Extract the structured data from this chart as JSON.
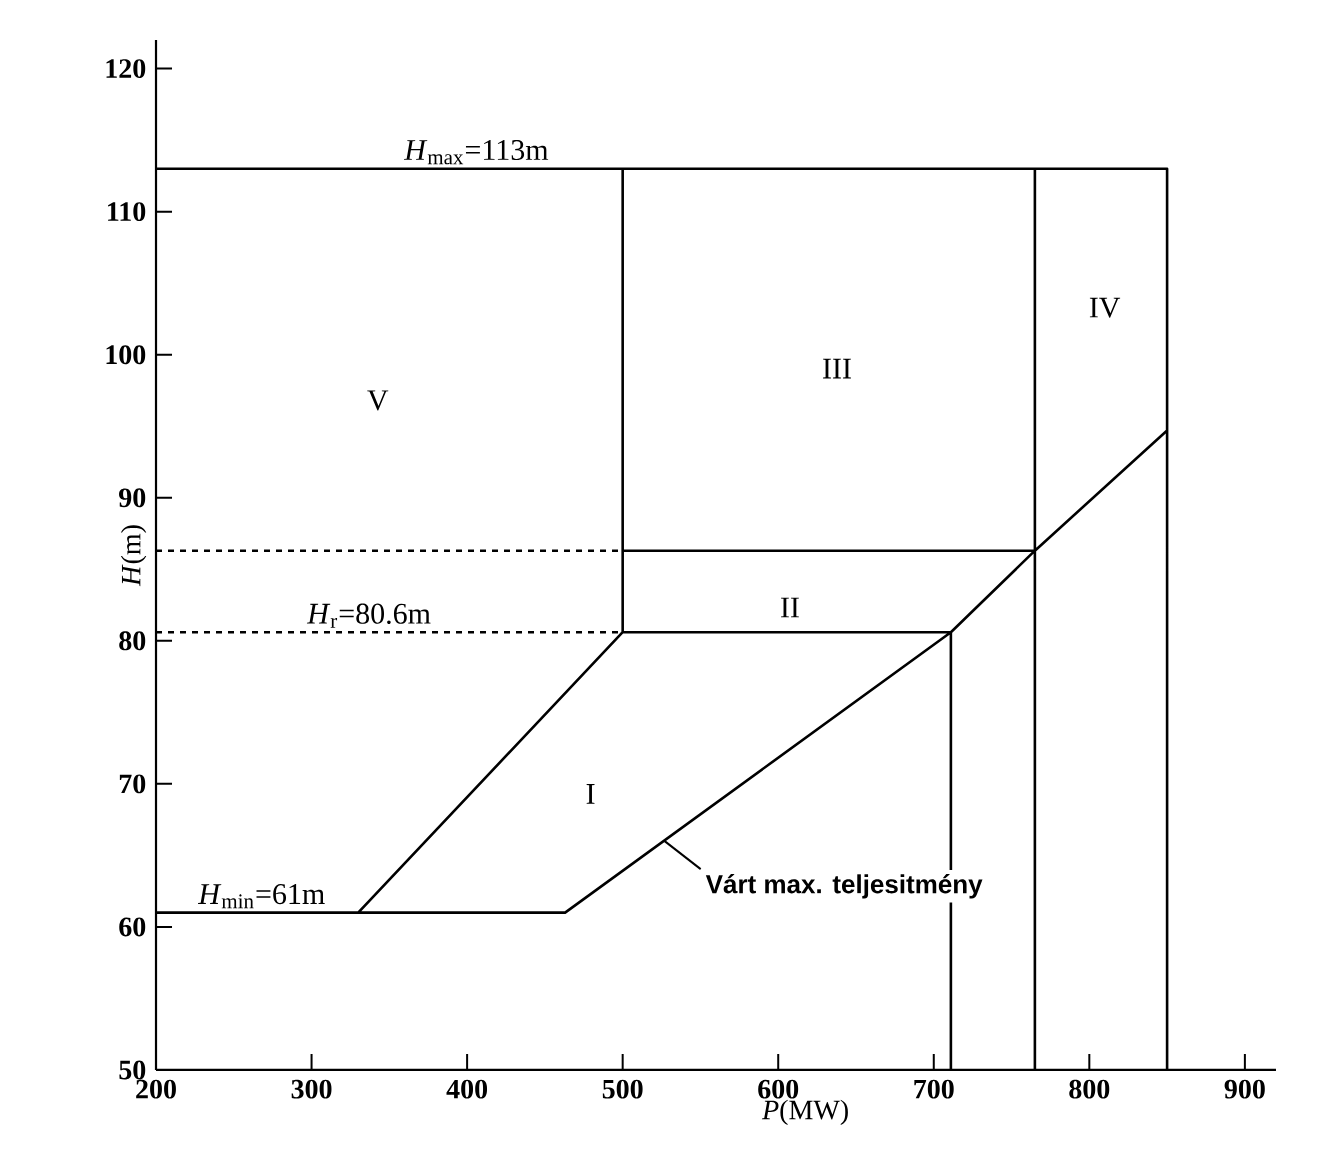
{
  "chart_data": {
    "type": "line",
    "xlabel": "*P*(MW)",
    "ylabel": "*H*(m)",
    "xlim": [
      200,
      920
    ],
    "ylim": [
      50,
      122
    ],
    "xticks": [
      200,
      300,
      400,
      500,
      600,
      700,
      800,
      900
    ],
    "yticks": [
      50,
      60,
      70,
      80,
      90,
      100,
      110,
      120
    ],
    "series": [
      {
        "color": "#000000",
        "x": [
          200,
          850,
          850,
          null,
          200,
          463,
          711,
          765,
          850,
          null,
          330,
          500,
          500,
          null,
          500,
          711,
          711,
          null,
          500,
          765,
          null,
          765,
          765
        ],
        "values": [
          113,
          113,
          50,
          null,
          61,
          61,
          80.6,
          86.3,
          94.7,
          null,
          61,
          80.6,
          113,
          null,
          80.6,
          80.6,
          50,
          null,
          86.3,
          86.3,
          null,
          113,
          50
        ]
      },
      {
        "color": "#000000",
        "x": [
          200,
          500
        ],
        "values": [
          86.3,
          86.3
        ],
        "line_style": "dashed"
      },
      {
        "color": "#000000",
        "x": [
          200,
          500
        ],
        "values": [
          80.6,
          80.6
        ],
        "line_style": "dashed"
      }
    ],
    "annotations": [
      {
        "text": "*H*$_{max}$=113m",
        "x": 406,
        "y": 113
      },
      {
        "text": "*H*$_{r}$=80.6m",
        "x": 337,
        "y": 80.6
      },
      {
        "text": "*H*$_{min}$=61m",
        "x": 268,
        "y": 61
      },
      "I",
      "II",
      "III",
      "IV",
      "V",
      {
        "text": "Várt max. teljesitmény",
        "x": 527,
        "y": 66
      }
    ]
  }
}
